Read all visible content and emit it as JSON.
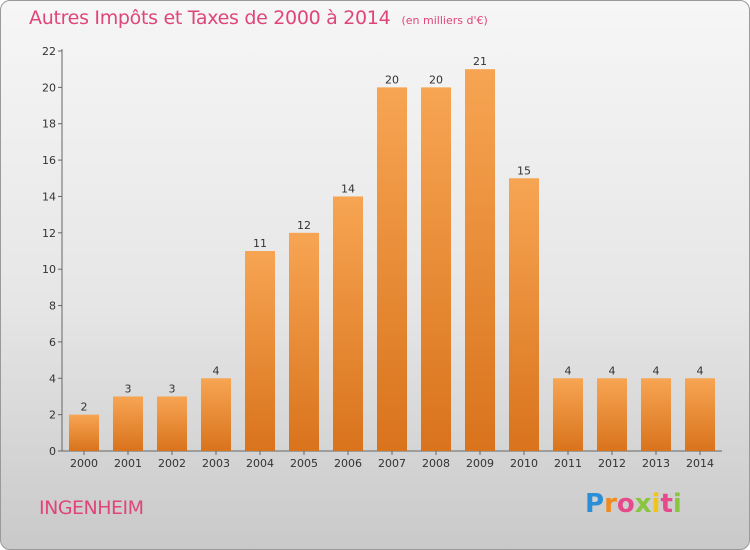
{
  "header": {
    "title": "Autres Impôts et Taxes de 2000 à 2014",
    "subtitle": "(en milliers d'€)"
  },
  "footer": {
    "commune": "INGENHEIM",
    "logo": [
      "P",
      "r",
      "o",
      "x",
      "i",
      "t",
      "i"
    ]
  },
  "colors": {
    "bar_top": "#f7a553",
    "bar_bottom": "#d9731c",
    "title": "#e0457a",
    "axis": "#666666"
  },
  "chart_data": {
    "type": "bar",
    "title": "Autres Impôts et Taxes de 2000 à 2014",
    "categories": [
      "2000",
      "2001",
      "2002",
      "2003",
      "2004",
      "2005",
      "2006",
      "2007",
      "2008",
      "2009",
      "2010",
      "2011",
      "2012",
      "2013",
      "2014"
    ],
    "values": [
      2,
      3,
      3,
      4,
      11,
      12,
      14,
      20,
      20,
      21,
      15,
      4,
      4,
      4,
      4
    ],
    "ylim": [
      0,
      22
    ],
    "yticks": [
      0,
      2,
      4,
      6,
      8,
      10,
      12,
      14,
      16,
      18,
      20,
      22
    ],
    "grid": false,
    "legend": "none"
  }
}
